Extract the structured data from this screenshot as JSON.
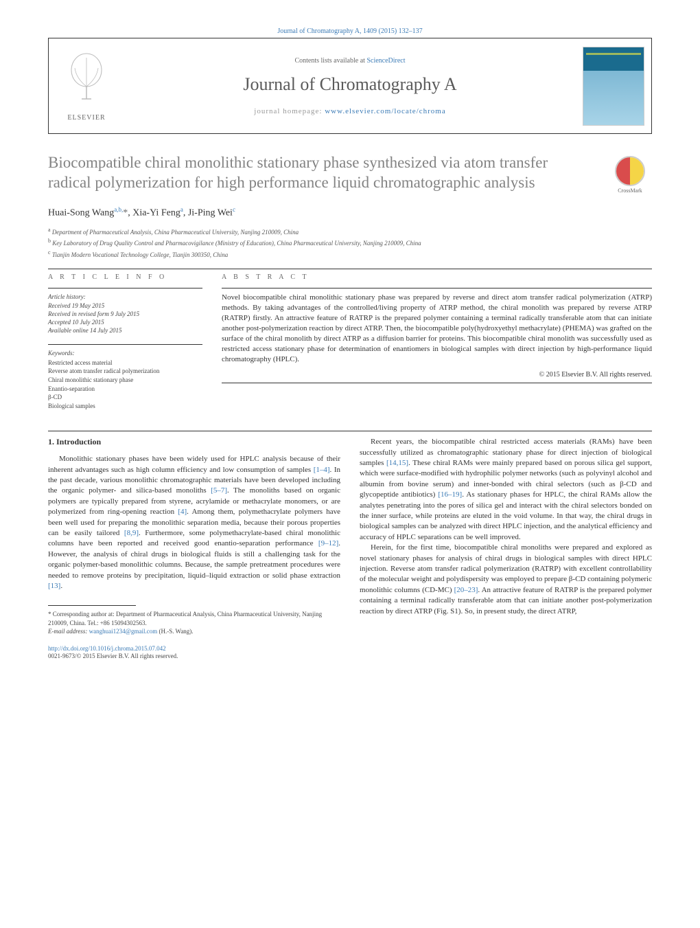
{
  "top_citation": "Journal of Chromatography A, 1409 (2015) 132–137",
  "header": {
    "elsevier_label": "ELSEVIER",
    "contents_prefix": "Contents lists available at ",
    "contents_link": "ScienceDirect",
    "journal_title": "Journal of Chromatography A",
    "homepage_prefix": "journal homepage: ",
    "homepage_url": "www.elsevier.com/locate/chroma"
  },
  "crossmark_label": "CrossMark",
  "title": "Biocompatible chiral monolithic stationary phase synthesized via atom transfer radical polymerization for high performance liquid chromatographic analysis",
  "authors_html": "Huai-Song Wang<sup>a,b,</sup><span class='star'>*</span>, Xia-Yi Feng<sup>a</sup>, Ji-Ping Wei<sup>c</sup>",
  "affiliations": [
    {
      "sup": "a",
      "text": "Department of Pharmaceutical Analysis, China Pharmaceutical University, Nanjing 210009, China"
    },
    {
      "sup": "b",
      "text": "Key Laboratory of Drug Quality Control and Pharmacovigilance (Ministry of Education), China Pharmaceutical University, Nanjing 210009, China"
    },
    {
      "sup": "c",
      "text": "Tianjin Modern Vocational Technology College, Tianjin 300350, China"
    }
  ],
  "info_header": "A R T I C L E   I N F O",
  "abstract_header": "A B S T R A C T",
  "history": {
    "label": "Article history:",
    "received": "Received 19 May 2015",
    "revised": "Received in revised form 9 July 2015",
    "accepted": "Accepted 10 July 2015",
    "online": "Available online 14 July 2015"
  },
  "keywords_label": "Keywords:",
  "keywords": [
    "Restricted access material",
    "Reverse atom transfer radical polymerization",
    "Chiral monolithic stationary phase",
    "Enantio-separation",
    "β-CD",
    "Biological samples"
  ],
  "abstract": "Novel biocompatible chiral monolithic stationary phase was prepared by reverse and direct atom transfer radical polymerization (ATRP) methods. By taking advantages of the controlled/living property of ATRP method, the chiral monolith was prepared by reverse ATRP (RATRP) firstly. An attractive feature of RATRP is the prepared polymer containing a terminal radically transferable atom that can initiate another post-polymerization reaction by direct ATRP. Then, the biocompatible poly(hydroxyethyl methacrylate) (PHEMA) was grafted on the surface of the chiral monolith by direct ATRP as a diffusion barrier for proteins. This biocompatible chiral monolith was successfully used as restricted access stationary phase for determination of enantiomers in biological samples with direct injection by high-performance liquid chromatography (HPLC).",
  "copyright": "© 2015 Elsevier B.V. All rights reserved.",
  "intro_title": "1. Introduction",
  "col1_paras": [
    "Monolithic stationary phases have been widely used for HPLC analysis because of their inherent advantages such as high column efficiency and low consumption of samples <a>[1–4]</a>. In the past decade, various monolithic chromatographic materials have been developed including the organic polymer- and silica-based monoliths <a>[5–7]</a>. The monoliths based on organic polymers are typically prepared from styrene, acrylamide or methacrylate monomers, or are polymerized from ring-opening reaction <a>[4]</a>. Among them, polymethacrylate polymers have been well used for preparing the monolithic separation media, because their porous properties can be easily tailored <a>[8,9]</a>. Furthermore, some polymethacrylate-based chiral monolithic columns have been reported and received good enantio-separation performance <a>[9–12]</a>. However, the analysis of chiral drugs in biological fluids is still a challenging task for the organic polymer-based monolithic columns. Because, the sample pretreatment procedures were needed to remove proteins by precipitation, liquid–liquid extraction or solid phase extraction <a>[13]</a>."
  ],
  "col2_paras": [
    "Recent years, the biocompatible chiral restricted access materials (RAMs) have been successfully utilized as chromatographic stationary phase for direct injection of biological samples <a>[14,15]</a>. These chiral RAMs were mainly prepared based on porous silica gel support, which were surface-modified with hydrophilic polymer networks (such as polyvinyl alcohol and albumin from bovine serum) and inner-bonded with chiral selectors (such as β-CD and glycopeptide antibiotics) <a>[16–19]</a>. As stationary phases for HPLC, the chiral RAMs allow the analytes penetrating into the pores of silica gel and interact with the chiral selectors bonded on the inner surface, while proteins are eluted in the void volume. In that way, the chiral drugs in biological samples can be analyzed with direct HPLC injection, and the analytical efficiency and accuracy of HPLC separations can be well improved.",
    "Herein, for the first time, biocompatible chiral monoliths were prepared and explored as novel stationary phases for analysis of chiral drugs in biological samples with direct HPLC injection. Reverse atom transfer radical polymerization (RATRP) with excellent controllability of the molecular weight and polydispersity was employed to prepare β-CD containing polymeric monolithic columns (CD-MC) <a>[20–23]</a>. An attractive feature of RATRP is the prepared polymer containing a terminal radically transferable atom that can initiate another post-polymerization reaction by direct ATRP (Fig. S1). So, in present study, the direct ATRP,"
  ],
  "corresponding": {
    "line1": "* Corresponding author at: Department of Pharmaceutical Analysis, China Pharmaceutical University, Nanjing 210009, China. Tel.: +86 15094302563.",
    "email_label": "E-mail address: ",
    "email": "wanghuai1234@gmail.com",
    "email_suffix": " (H.-S. Wang)."
  },
  "footer": {
    "doi": "http://dx.doi.org/10.1016/j.chroma.2015.07.042",
    "issn": "0021-9673/© 2015 Elsevier B.V. All rights reserved."
  }
}
